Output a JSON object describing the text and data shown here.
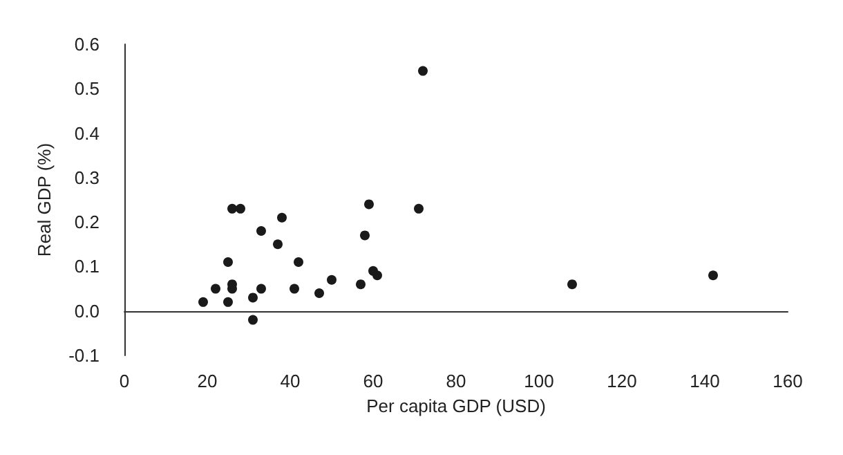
{
  "chart_data": {
    "type": "scatter",
    "xlabel": "Per capita GDP (USD)",
    "ylabel": "Real GDP (%)",
    "x": [
      19,
      22,
      25,
      26,
      26,
      25,
      26,
      28,
      31,
      31,
      33,
      33,
      37,
      38,
      42,
      41,
      47,
      50,
      57,
      58,
      59,
      60,
      61,
      71,
      72,
      108,
      142
    ],
    "values": [
      0.02,
      0.05,
      0.02,
      0.06,
      0.05,
      0.11,
      0.23,
      0.23,
      -0.02,
      0.03,
      0.05,
      0.18,
      0.15,
      0.21,
      0.11,
      0.05,
      0.04,
      0.07,
      0.06,
      0.17,
      0.24,
      0.09,
      0.08,
      0.23,
      0.54,
      0.06,
      0.08
    ],
    "color": "#1a1a1a",
    "marker": "circle",
    "xlim": [
      0,
      160
    ],
    "xticks": [
      0,
      20,
      40,
      60,
      80,
      100,
      120,
      140,
      160
    ],
    "ylim": [
      -0.1,
      0.6
    ],
    "yticks": [
      -0.1,
      {
        "value": 0,
        "label": "0.0"
      },
      0.1,
      0.2,
      0.3,
      0.4,
      0.5,
      0.6
    ]
  }
}
